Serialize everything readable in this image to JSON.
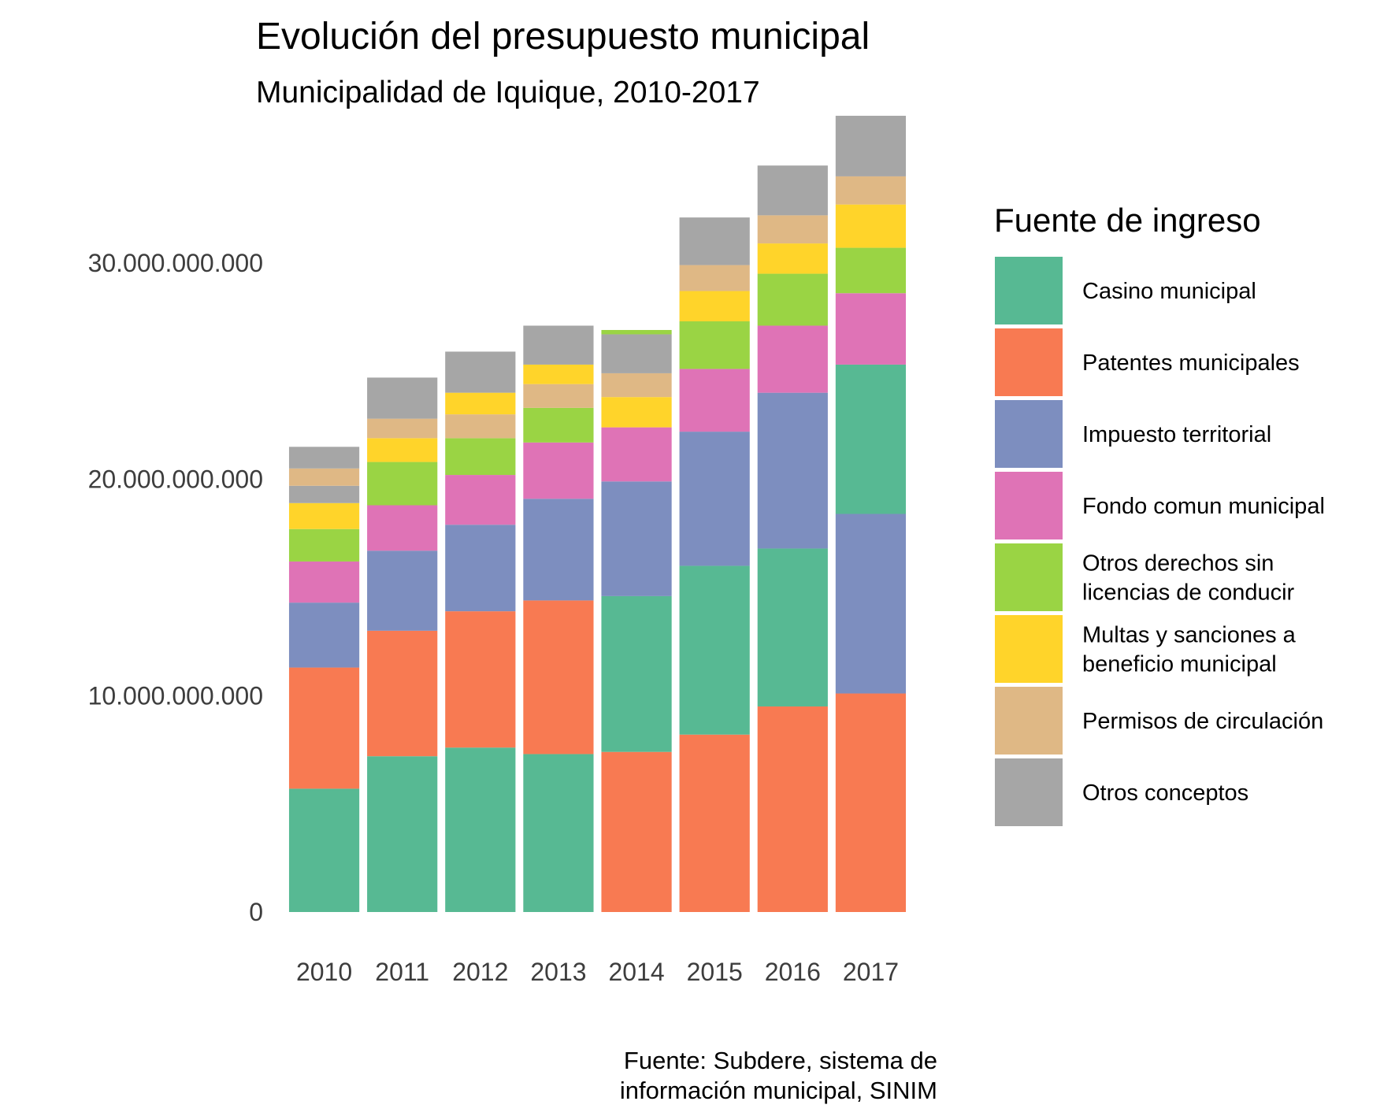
{
  "chart_data": {
    "type": "bar",
    "stacked": true,
    "title": "Evolución del presupuesto municipal",
    "subtitle": "Municipalidad de Iquique, 2010-2017",
    "caption": [
      "Fuente: Subdere, sistema de",
      "información municipal, SINIM"
    ],
    "xlabel": "",
    "ylabel": "",
    "categories": [
      "2010",
      "2011",
      "2012",
      "2013",
      "2014",
      "2015",
      "2016",
      "2017"
    ],
    "ylim": [
      0,
      36800000000
    ],
    "yticks": [
      0,
      10000000000,
      20000000000,
      30000000000
    ],
    "ytick_labels": [
      "0",
      "10.000.000.000",
      "20.000.000.000",
      "30.000.000.000"
    ],
    "grid": false,
    "legend": {
      "title": "Fuente de ingreso",
      "placement": "right",
      "entries": [
        {
          "label": [
            "Casino municipal"
          ],
          "color": "#57b993"
        },
        {
          "label": [
            "Patentes municipales"
          ],
          "color": "#f87a52"
        },
        {
          "label": [
            "Impuesto territorial"
          ],
          "color": "#7d8ebf"
        },
        {
          "label": [
            "Fondo comun municipal"
          ],
          "color": "#df73b6"
        },
        {
          "label": [
            "Otros derechos sin",
            "licencias de conducir"
          ],
          "color": "#9ad444"
        },
        {
          "label": [
            "Multas y sanciones a",
            "beneficio municipal"
          ],
          "color": "#ffd42a"
        },
        {
          "label": [
            "Permisos de circulación"
          ],
          "color": "#dfb885"
        },
        {
          "label": [
            "Otros conceptos"
          ],
          "color": "#a6a6a6"
        }
      ]
    },
    "stacks": [
      {
        "year": "2010",
        "segments": [
          {
            "series": "Casino municipal",
            "value": 5700000000
          },
          {
            "series": "Patentes municipales",
            "value": 5600000000
          },
          {
            "series": "Impuesto territorial",
            "value": 3000000000
          },
          {
            "series": "Fondo comun municipal",
            "value": 1900000000
          },
          {
            "series": "Otros derechos sin licencias de conducir",
            "value": 1500000000
          },
          {
            "series": "Multas y sanciones a beneficio municipal",
            "value": 1200000000
          },
          {
            "series": "Otros conceptos",
            "value": 800000000
          },
          {
            "series": "Permisos de circulación",
            "value": 800000000
          },
          {
            "series": "Otros conceptos",
            "value": 1000000000
          }
        ]
      },
      {
        "year": "2011",
        "segments": [
          {
            "series": "Casino municipal",
            "value": 7200000000
          },
          {
            "series": "Patentes municipales",
            "value": 5800000000
          },
          {
            "series": "Impuesto territorial",
            "value": 3700000000
          },
          {
            "series": "Fondo comun municipal",
            "value": 2100000000
          },
          {
            "series": "Otros derechos sin licencias de conducir",
            "value": 2000000000
          },
          {
            "series": "Multas y sanciones a beneficio municipal",
            "value": 1100000000
          },
          {
            "series": "Permisos de circulación",
            "value": 900000000
          },
          {
            "series": "Otros conceptos",
            "value": 1900000000
          }
        ]
      },
      {
        "year": "2012",
        "segments": [
          {
            "series": "Casino municipal",
            "value": 7600000000
          },
          {
            "series": "Patentes municipales",
            "value": 6300000000
          },
          {
            "series": "Impuesto territorial",
            "value": 4000000000
          },
          {
            "series": "Fondo comun municipal",
            "value": 2300000000
          },
          {
            "series": "Otros derechos sin licencias de conducir",
            "value": 1700000000
          },
          {
            "series": "Permisos de circulación",
            "value": 1100000000
          },
          {
            "series": "Multas y sanciones a beneficio municipal",
            "value": 1000000000
          },
          {
            "series": "Otros conceptos",
            "value": 1900000000
          }
        ]
      },
      {
        "year": "2013",
        "segments": [
          {
            "series": "Casino municipal",
            "value": 7300000000
          },
          {
            "series": "Patentes municipales",
            "value": 7100000000
          },
          {
            "series": "Impuesto territorial",
            "value": 4700000000
          },
          {
            "series": "Fondo comun municipal",
            "value": 2600000000
          },
          {
            "series": "Otros derechos sin licencias de conducir",
            "value": 1600000000
          },
          {
            "series": "Permisos de circulación",
            "value": 1100000000
          },
          {
            "series": "Multas y sanciones a beneficio municipal",
            "value": 900000000
          },
          {
            "series": "Otros conceptos",
            "value": 1800000000
          }
        ]
      },
      {
        "year": "2014",
        "segments": [
          {
            "series": "Patentes municipales",
            "value": 7400000000
          },
          {
            "series": "Casino municipal",
            "value": 7200000000
          },
          {
            "series": "Impuesto territorial",
            "value": 5300000000
          },
          {
            "series": "Fondo comun municipal",
            "value": 2500000000
          },
          {
            "series": "Multas y sanciones a beneficio municipal",
            "value": 1400000000
          },
          {
            "series": "Permisos de circulación",
            "value": 1100000000
          },
          {
            "series": "Otros conceptos",
            "value": 1800000000
          },
          {
            "series": "Otros derechos sin licencias de conducir",
            "value": 200000000
          }
        ]
      },
      {
        "year": "2015",
        "segments": [
          {
            "series": "Patentes municipales",
            "value": 8200000000
          },
          {
            "series": "Casino municipal",
            "value": 7800000000
          },
          {
            "series": "Impuesto territorial",
            "value": 6200000000
          },
          {
            "series": "Fondo comun municipal",
            "value": 2900000000
          },
          {
            "series": "Otros derechos sin licencias de conducir",
            "value": 2200000000
          },
          {
            "series": "Multas y sanciones a beneficio municipal",
            "value": 1400000000
          },
          {
            "series": "Permisos de circulación",
            "value": 1200000000
          },
          {
            "series": "Otros conceptos",
            "value": 2200000000
          }
        ]
      },
      {
        "year": "2016",
        "segments": [
          {
            "series": "Patentes municipales",
            "value": 9500000000
          },
          {
            "series": "Casino municipal",
            "value": 7300000000
          },
          {
            "series": "Impuesto territorial",
            "value": 7200000000
          },
          {
            "series": "Fondo comun municipal",
            "value": 3100000000
          },
          {
            "series": "Otros derechos sin licencias de conducir",
            "value": 2400000000
          },
          {
            "series": "Multas y sanciones a beneficio municipal",
            "value": 1400000000
          },
          {
            "series": "Permisos de circulación",
            "value": 1300000000
          },
          {
            "series": "Otros conceptos",
            "value": 2300000000
          }
        ]
      },
      {
        "year": "2017",
        "segments": [
          {
            "series": "Patentes municipales",
            "value": 10100000000
          },
          {
            "series": "Impuesto territorial",
            "value": 8300000000
          },
          {
            "series": "Casino municipal",
            "value": 6900000000
          },
          {
            "series": "Fondo comun municipal",
            "value": 3300000000
          },
          {
            "series": "Otros derechos sin licencias de conducir",
            "value": 2100000000
          },
          {
            "series": "Multas y sanciones a beneficio municipal",
            "value": 2000000000
          },
          {
            "series": "Permisos de circulación",
            "value": 1300000000
          },
          {
            "series": "Otros conceptos",
            "value": 2800000000
          }
        ]
      }
    ]
  }
}
